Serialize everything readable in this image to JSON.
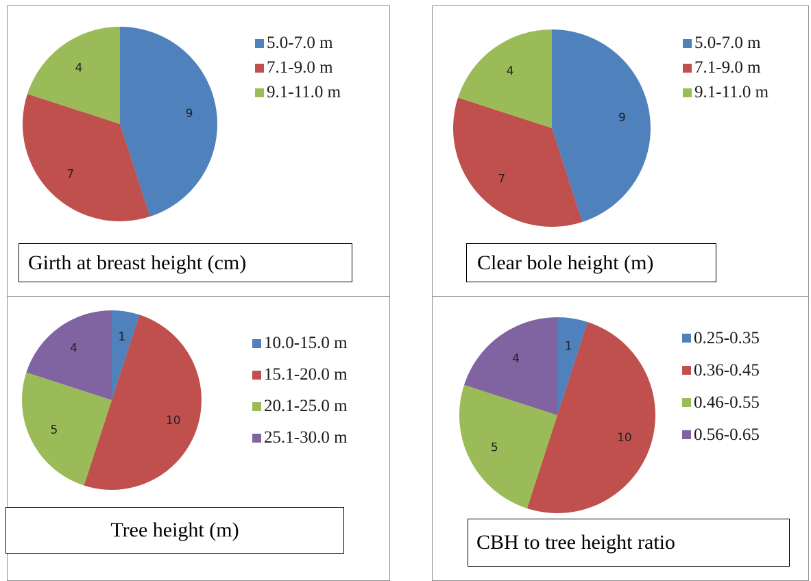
{
  "colors": {
    "blue": "#4f81bd",
    "red": "#c0504d",
    "green": "#9bbb59",
    "purple": "#8064a2"
  },
  "chart_data": [
    {
      "type": "pie",
      "title": "Girth at breast height (cm)",
      "categories": [
        "5.0-7.0 m",
        "7.1-9.0 m",
        "9.1-11.0 m"
      ],
      "values": [
        9,
        7,
        4
      ],
      "colors": [
        "#4f81bd",
        "#c0504d",
        "#9bbb59"
      ],
      "legend": "right"
    },
    {
      "type": "pie",
      "title": "Clear bole height (m)",
      "categories": [
        "5.0-7.0 m",
        "7.1-9.0 m",
        "9.1-11.0 m"
      ],
      "values": [
        9,
        7,
        4
      ],
      "colors": [
        "#4f81bd",
        "#c0504d",
        "#9bbb59"
      ],
      "legend": "right"
    },
    {
      "type": "pie",
      "title": "Tree height (m)",
      "categories": [
        "10.0-15.0 m",
        "15.1-20.0 m",
        "20.1-25.0 m",
        "25.1-30.0 m"
      ],
      "values": [
        1,
        10,
        5,
        4
      ],
      "colors": [
        "#4f81bd",
        "#c0504d",
        "#9bbb59",
        "#8064a2"
      ],
      "legend": "right"
    },
    {
      "type": "pie",
      "title": "CBH to tree height ratio",
      "categories": [
        "0.25-0.35",
        "0.36-0.45",
        "0.46-0.55",
        "0.56-0.65"
      ],
      "values": [
        1,
        10,
        5,
        4
      ],
      "colors": [
        "#4f81bd",
        "#c0504d",
        "#9bbb59",
        "#8064a2"
      ],
      "legend": "right"
    }
  ]
}
